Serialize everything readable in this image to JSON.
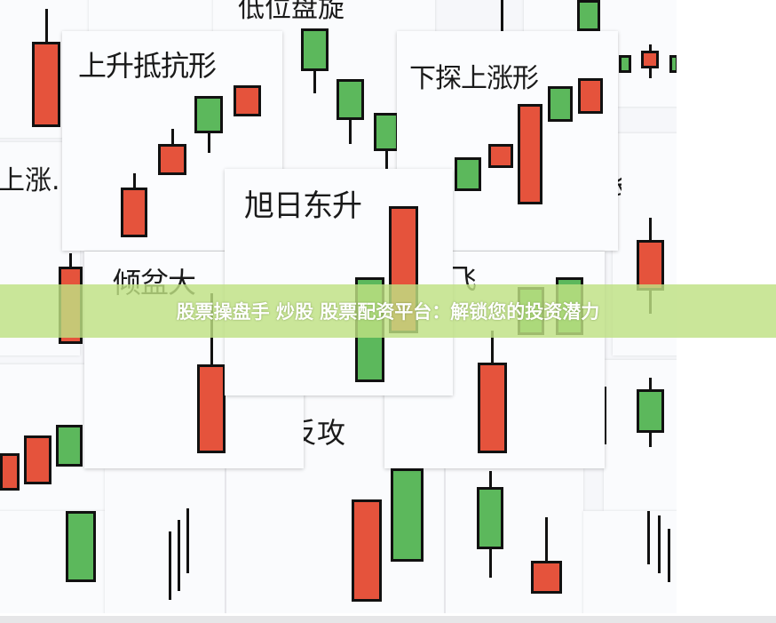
{
  "cards": {
    "top_partial": "低位盘旋",
    "card_a": "上升抵抗形",
    "card_b": "下探上涨形",
    "card_c": "旭日东升",
    "card_d": "倾盆大",
    "card_e": "飞",
    "left_partial": "上涨.",
    "bottom_partial": "反攻",
    "right_partial": "长"
  },
  "banner": {
    "text": "股票操盘手 炒股 股票配资平台：解锁您的投资潜力"
  },
  "colors": {
    "bullish_red": "#e5533c",
    "bearish_green": "#5cb85c",
    "banner": "#c5e596"
  }
}
